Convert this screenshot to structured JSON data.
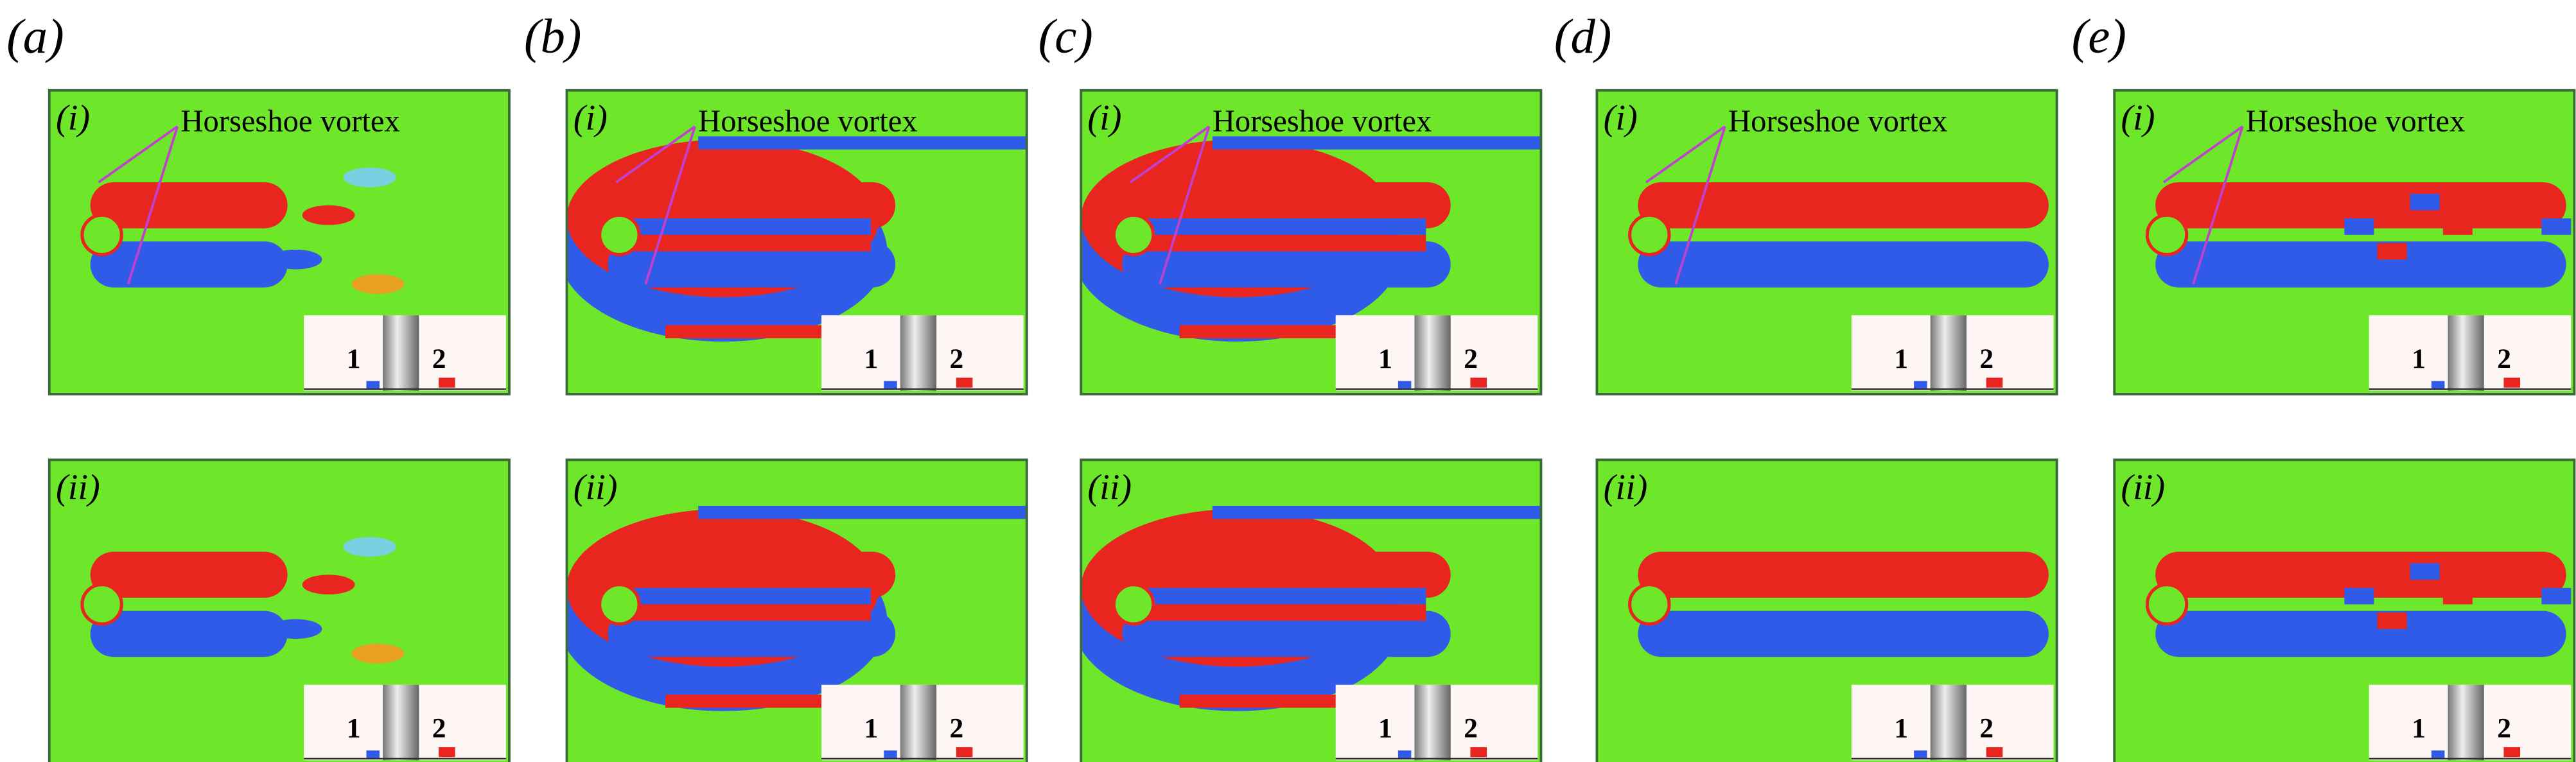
{
  "panels": [
    {
      "label": "(a)",
      "rows": [
        {
          "label": "(i)",
          "annotation": "Horseshoe vortex",
          "inset": [
            "1",
            "2"
          ]
        },
        {
          "label": "(ii)",
          "inset": [
            "1",
            "2"
          ]
        }
      ]
    },
    {
      "label": "(b)",
      "rows": [
        {
          "label": "(i)",
          "annotation": "Horseshoe vortex",
          "inset": [
            "1",
            "2"
          ]
        },
        {
          "label": "(ii)",
          "inset": [
            "1",
            "2"
          ]
        }
      ]
    },
    {
      "label": "(c)",
      "rows": [
        {
          "label": "(i)",
          "annotation": "Horseshoe vortex",
          "inset": [
            "1",
            "2"
          ]
        },
        {
          "label": "(ii)",
          "inset": [
            "1",
            "2"
          ]
        }
      ]
    },
    {
      "label": "(d)",
      "rows": [
        {
          "label": "(i)",
          "annotation": "Horseshoe vortex",
          "inset": [
            "1",
            "2"
          ]
        },
        {
          "label": "(ii)",
          "inset": [
            "1",
            "2"
          ]
        }
      ]
    },
    {
      "label": "(e)",
      "rows": [
        {
          "label": "(i)",
          "annotation": "Horseshoe vortex",
          "inset": [
            "1",
            "2"
          ]
        },
        {
          "label": "(ii)",
          "inset": [
            "1",
            "2"
          ]
        }
      ]
    }
  ]
}
